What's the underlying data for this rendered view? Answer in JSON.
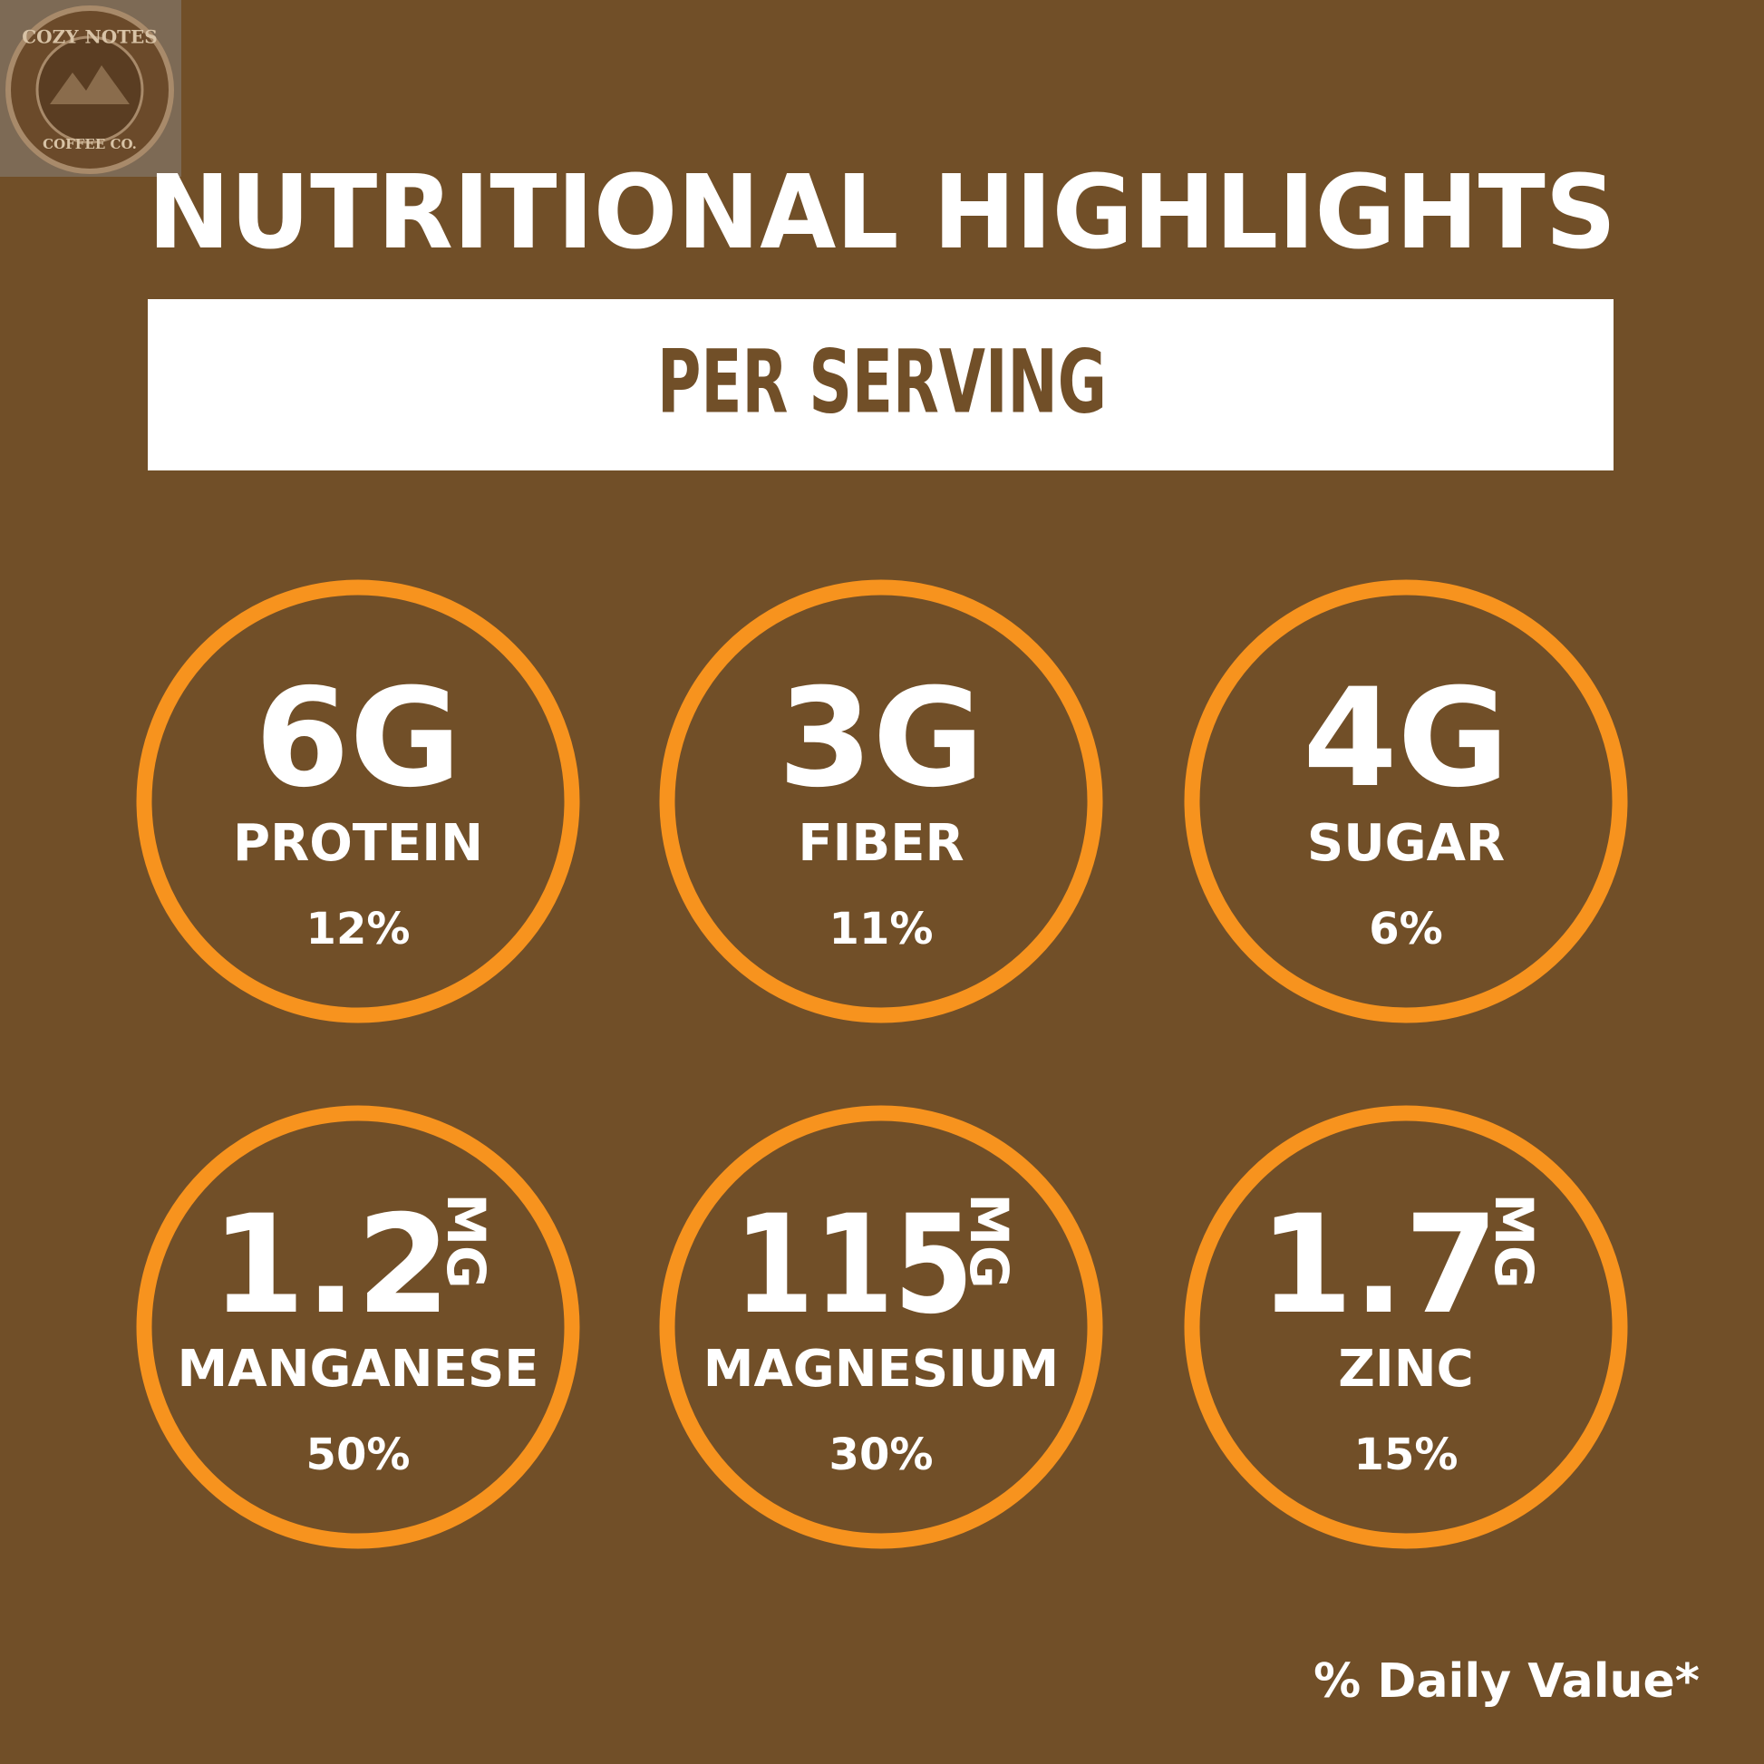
{
  "logo": {
    "top": "COZY NOTES",
    "bottom": "COFFEE CO."
  },
  "title": "NUTRITIONAL HIGHLIGHTS",
  "subtitle": "PER SERVING",
  "items": [
    {
      "amount": "6G",
      "name": "PROTEIN",
      "percent": "12%"
    },
    {
      "amount": "3G",
      "name": "FIBER",
      "percent": "11%"
    },
    {
      "amount": "4G",
      "name": "SUGAR",
      "percent": "6%"
    },
    {
      "amount": "1.2",
      "unit": "MG",
      "name": "MANGANESE",
      "percent": "50%"
    },
    {
      "amount": "115",
      "unit": "MG",
      "name": "MAGNESIUM",
      "percent": "30%"
    },
    {
      "amount": "1.7",
      "unit": "MG",
      "name": "ZINC",
      "percent": "15%"
    }
  ],
  "footnote": "% Daily Value*"
}
